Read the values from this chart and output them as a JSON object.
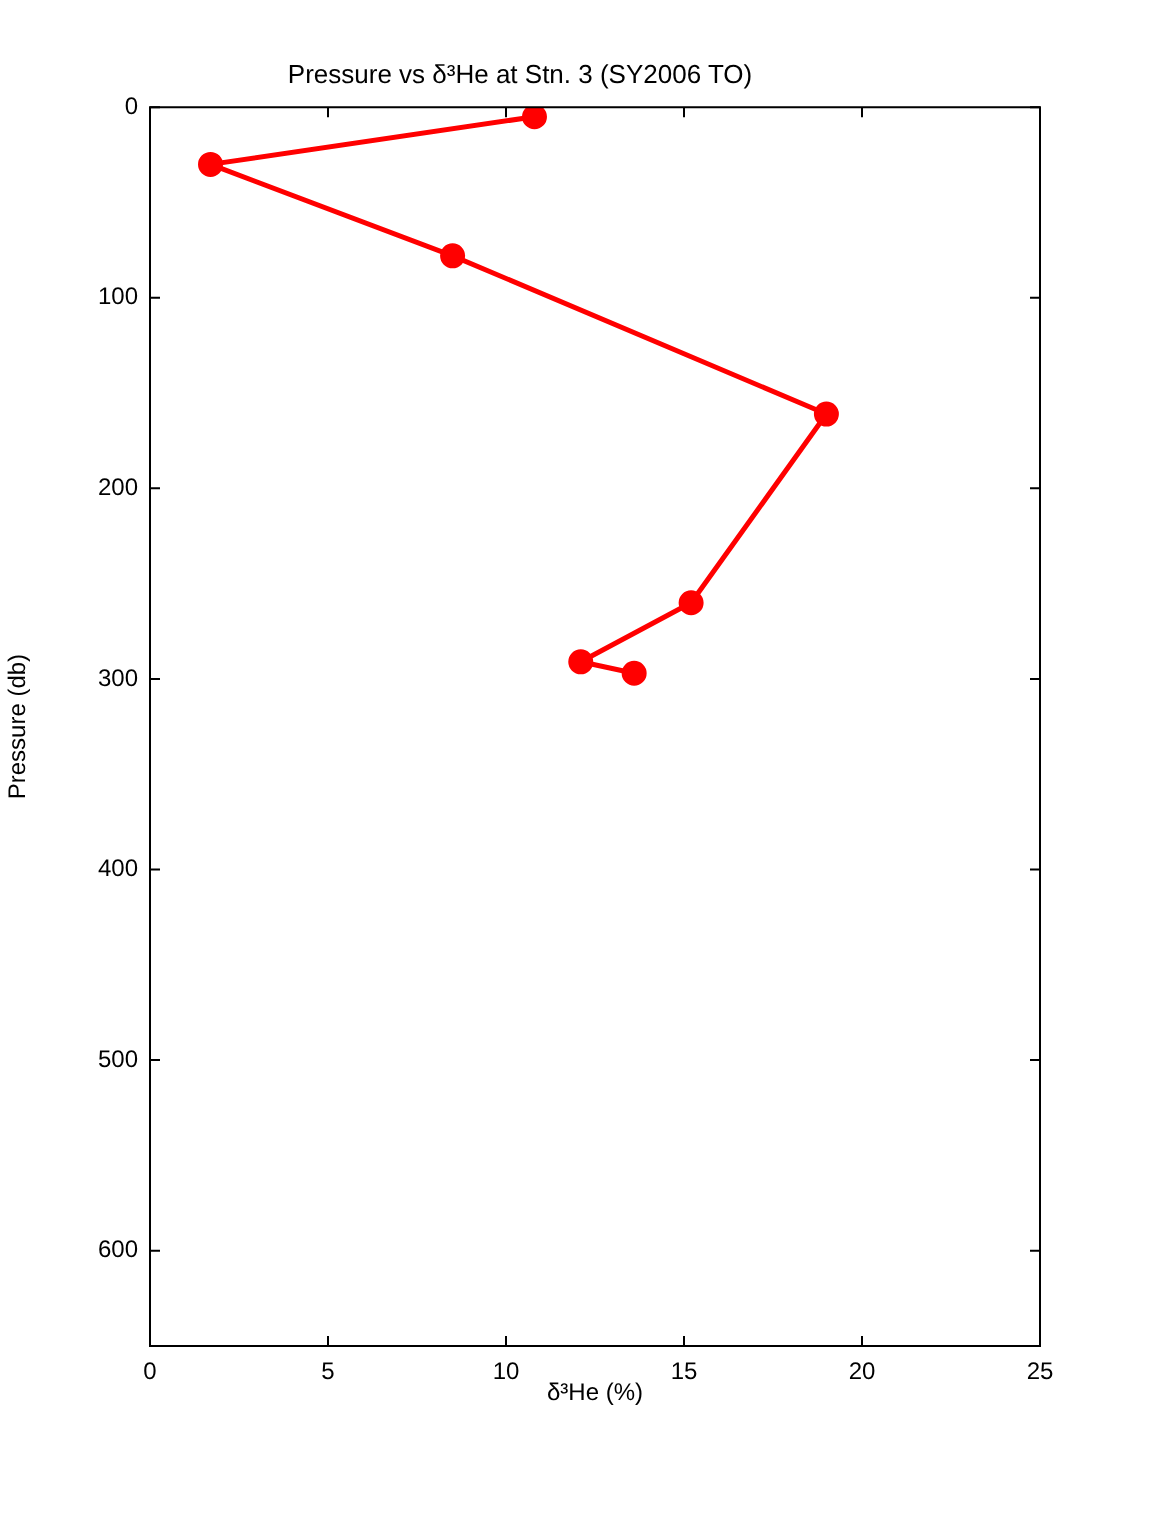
{
  "chart_data": {
    "type": "line",
    "title": "Pressure vs δ³He at Stn. 3 (SY2006 TO)",
    "xlabel": "δ³He (%)",
    "ylabel": "Pressure (db)",
    "series": [
      {
        "color": "#ff0000",
        "x": [
          10.8,
          1.7,
          8.5,
          19.0,
          15.2,
          12.1,
          13.6
        ],
        "values": [
          5,
          30,
          78,
          161,
          260,
          291,
          297
        ]
      }
    ],
    "xlim": [
      0,
      25
    ],
    "xticks": [
      0,
      5,
      10,
      15,
      20,
      25
    ],
    "ylim": [
      650,
      0
    ],
    "yticks": [
      0,
      100,
      200,
      300,
      400,
      500,
      600
    ],
    "grid": false,
    "legend": false,
    "marker": "circle",
    "line_style": "solid"
  }
}
